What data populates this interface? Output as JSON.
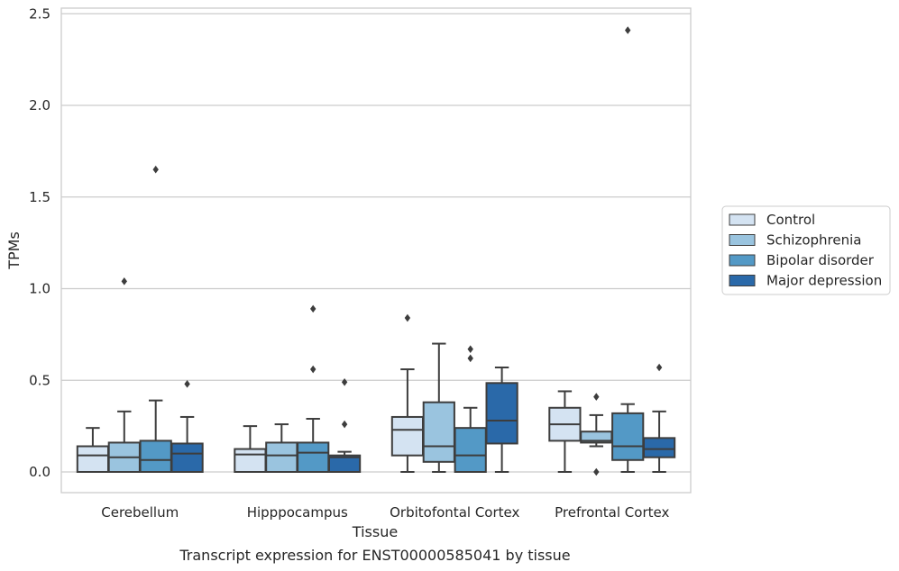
{
  "chart_data": {
    "type": "boxplot",
    "title": "",
    "caption": "Transcript expression for ENST00000585041 by tissue",
    "xlabel": "Tissue",
    "ylabel": "TPMs",
    "ylim": [
      -0.12,
      2.54
    ],
    "yticks": [
      0.0,
      0.5,
      1.0,
      1.5,
      2.0,
      2.5
    ],
    "ytick_labels": [
      "0.0",
      "0.5",
      "1.0",
      "1.5",
      "2.0",
      "2.5"
    ],
    "grid": "horizontal",
    "legend_position": "right",
    "categories": [
      "Cerebellum",
      "Hipppocampus",
      "Orbitofontal Cortex",
      "Prefrontal Cortex"
    ],
    "series": [
      {
        "name": "Control",
        "color": "#d4e3f2",
        "boxes": [
          {
            "whislo": 0.0,
            "q1": 0.0,
            "med": 0.09,
            "q3": 0.14,
            "whishi": 0.24,
            "fliers": []
          },
          {
            "whislo": 0.0,
            "q1": 0.0,
            "med": 0.095,
            "q3": 0.125,
            "whishi": 0.25,
            "fliers": []
          },
          {
            "whislo": 0.0,
            "q1": 0.09,
            "med": 0.23,
            "q3": 0.3,
            "whishi": 0.56,
            "fliers": [
              0.84
            ]
          },
          {
            "whislo": 0.0,
            "q1": 0.17,
            "med": 0.26,
            "q3": 0.35,
            "whishi": 0.44,
            "fliers": []
          }
        ]
      },
      {
        "name": "Schizophrenia",
        "color": "#9ac4df",
        "boxes": [
          {
            "whislo": 0.0,
            "q1": 0.0,
            "med": 0.08,
            "q3": 0.16,
            "whishi": 0.33,
            "fliers": [
              1.04
            ]
          },
          {
            "whislo": 0.0,
            "q1": 0.0,
            "med": 0.09,
            "q3": 0.16,
            "whishi": 0.26,
            "fliers": []
          },
          {
            "whislo": 0.0,
            "q1": 0.055,
            "med": 0.14,
            "q3": 0.38,
            "whishi": 0.7,
            "fliers": []
          },
          {
            "whislo": 0.14,
            "q1": 0.16,
            "med": 0.17,
            "q3": 0.22,
            "whishi": 0.31,
            "fliers": [
              0.41,
              0.0
            ]
          }
        ]
      },
      {
        "name": "Bipolar disorder",
        "color": "#5399c6",
        "boxes": [
          {
            "whislo": 0.0,
            "q1": 0.0,
            "med": 0.065,
            "q3": 0.17,
            "whishi": 0.39,
            "fliers": [
              1.65
            ]
          },
          {
            "whislo": 0.0,
            "q1": 0.0,
            "med": 0.105,
            "q3": 0.16,
            "whishi": 0.29,
            "fliers": [
              0.56,
              0.89
            ]
          },
          {
            "whislo": 0.0,
            "q1": 0.0,
            "med": 0.09,
            "q3": 0.24,
            "whishi": 0.35,
            "fliers": [
              0.62,
              0.67
            ]
          },
          {
            "whislo": 0.0,
            "q1": 0.065,
            "med": 0.14,
            "q3": 0.32,
            "whishi": 0.37,
            "fliers": [
              2.41
            ]
          }
        ]
      },
      {
        "name": "Major depression",
        "color": "#2a69a9",
        "boxes": [
          {
            "whislo": 0.0,
            "q1": 0.0,
            "med": 0.1,
            "q3": 0.155,
            "whishi": 0.3,
            "fliers": [
              0.48
            ]
          },
          {
            "whislo": 0.0,
            "q1": 0.0,
            "med": 0.08,
            "q3": 0.09,
            "whishi": 0.11,
            "fliers": [
              0.26,
              0.49
            ]
          },
          {
            "whislo": 0.0,
            "q1": 0.155,
            "med": 0.28,
            "q3": 0.485,
            "whishi": 0.57,
            "fliers": []
          },
          {
            "whislo": 0.0,
            "q1": 0.08,
            "med": 0.125,
            "q3": 0.185,
            "whishi": 0.33,
            "fliers": [
              0.57
            ]
          }
        ]
      }
    ]
  }
}
